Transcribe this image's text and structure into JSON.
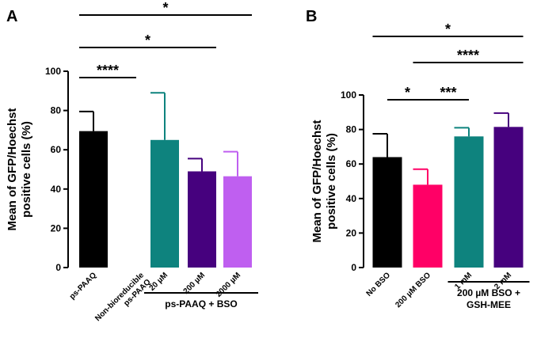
{
  "chart_data": [
    {
      "panel": "A",
      "type": "bar",
      "ylabel": "Mean of GFP/Hoechst\npositive cells (%)",
      "ylim": [
        0,
        100
      ],
      "yticks": [
        0,
        20,
        40,
        60,
        80,
        100
      ],
      "categories": [
        "ps-PAAQ",
        "Non-bioreducible ps-PAAQ",
        "20 µM",
        "200 µM",
        "2000 µM"
      ],
      "category_lines": [
        [
          "ps-PAAQ"
        ],
        [
          "Non-bioreducible",
          "ps-PAAQ"
        ],
        [
          "20 µM"
        ],
        [
          "200 µM"
        ],
        [
          "2000 µM"
        ]
      ],
      "values": [
        69.5,
        0,
        65,
        49,
        46.5
      ],
      "errors": [
        10,
        0,
        24,
        6.5,
        12.5
      ],
      "colors": [
        "#000000",
        "#000000",
        "#0e837e",
        "#46017e",
        "#bf5ff0"
      ],
      "group_label": "ps-PAAQ + BSO",
      "group_span": [
        2,
        4
      ],
      "significance": [
        {
          "from": 0,
          "to": 1,
          "label": "****"
        },
        {
          "from": 0,
          "to": 3,
          "label": "*"
        },
        {
          "from": 0,
          "to": 4,
          "label": "*"
        }
      ]
    },
    {
      "panel": "B",
      "type": "bar",
      "ylabel": "Mean of GFP/Hoechst\npositive cells (%)",
      "ylim": [
        0,
        100
      ],
      "yticks": [
        0,
        20,
        40,
        60,
        80,
        100
      ],
      "categories": [
        "No BSO",
        "200 µM BSO",
        "1 mM",
        "2 mM"
      ],
      "category_lines": [
        [
          "No BSO"
        ],
        [
          "200 µM BSO"
        ],
        [
          "1 mM"
        ],
        [
          "2 mM"
        ]
      ],
      "values": [
        64,
        48,
        76,
        81.5
      ],
      "errors": [
        13.5,
        9,
        5,
        8
      ],
      "colors": [
        "#000000",
        "#ff0066",
        "#0e837e",
        "#46017e"
      ],
      "group_label": "200 µM BSO +\nGSH-MEE",
      "group_span": [
        2,
        3
      ],
      "significance": [
        {
          "from": 0,
          "to": 1,
          "label": "*"
        },
        {
          "from": 1,
          "to": 2,
          "label": "***"
        },
        {
          "from": 1,
          "to": 3,
          "label": "****"
        },
        {
          "from": 0,
          "to": 3,
          "label": "*"
        }
      ]
    }
  ]
}
